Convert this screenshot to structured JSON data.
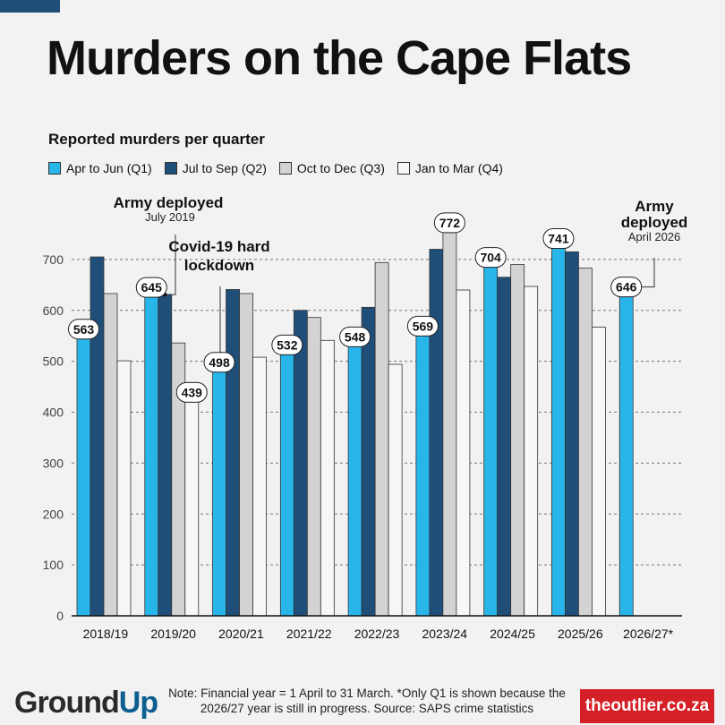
{
  "header": {
    "title": "Murders on the Cape Flats"
  },
  "chart_data": {
    "type": "bar",
    "title": "Murders on the Cape Flats",
    "subtitle": "Reported murders per quarter",
    "categories": [
      "2018/19",
      "2019/20",
      "2020/21",
      "2021/22",
      "2022/23",
      "2023/24",
      "2024/25",
      "2025/26",
      "2026/27*"
    ],
    "series": [
      {
        "name": "Apr to Jun (Q1)",
        "color": "#27b5ea",
        "values": [
          563,
          645,
          498,
          532,
          548,
          569,
          704,
          741,
          646
        ]
      },
      {
        "name": "Jul to Sep (Q2)",
        "color": "#1f4e79",
        "values": [
          705,
          631,
          641,
          600,
          606,
          720,
          665,
          715,
          null
        ]
      },
      {
        "name": "Oct to Dec (Q3)",
        "color": "#d3d3d3",
        "values": [
          633,
          536,
          633,
          586,
          694,
          772,
          690,
          683,
          null
        ]
      },
      {
        "name": "Jan to Mar (Q4)",
        "color": "#f7f7f7",
        "values": [
          501,
          439,
          508,
          541,
          494,
          640,
          647,
          567,
          null
        ]
      }
    ],
    "data_labels": [
      {
        "category": "2018/19",
        "series": "Apr to Jun (Q1)",
        "value": "563"
      },
      {
        "category": "2019/20",
        "series": "Apr to Jun (Q1)",
        "value": "645"
      },
      {
        "category": "2019/20",
        "series": "Jan to Mar (Q4)",
        "value": "439"
      },
      {
        "category": "2020/21",
        "series": "Apr to Jun (Q1)",
        "value": "498"
      },
      {
        "category": "2021/22",
        "series": "Apr to Jun (Q1)",
        "value": "532"
      },
      {
        "category": "2022/23",
        "series": "Apr to Jun (Q1)",
        "value": "548"
      },
      {
        "category": "2023/24",
        "series": "Apr to Jun (Q1)",
        "value": "569"
      },
      {
        "category": "2023/24",
        "series": "Oct to Dec (Q3)",
        "value": "772"
      },
      {
        "category": "2024/25",
        "series": "Apr to Jun (Q1)",
        "value": "704"
      },
      {
        "category": "2025/26",
        "series": "Apr to Jun (Q1)",
        "value": "741"
      },
      {
        "category": "2026/27*",
        "series": "Apr to Jun (Q1)",
        "value": "646"
      }
    ],
    "yticks": [
      0,
      100,
      200,
      300,
      400,
      500,
      600,
      700
    ],
    "ylim": [
      0,
      800
    ],
    "grid": true,
    "annotations": [
      {
        "title": "Army deployed",
        "detail": "July 2019",
        "category": "2019/20",
        "series": "Jul to Sep (Q2)",
        "value": 631
      },
      {
        "title": "Covid-19 hard lockdown",
        "detail": "",
        "category": "2020/21",
        "series": "Apr to Jun (Q1)",
        "value": 498
      },
      {
        "title": "Army deployed",
        "detail": "April 2026",
        "category": "2026/27*",
        "series": "Apr to Jun (Q1)",
        "value": 646
      }
    ]
  },
  "footer": {
    "logo_text": "GroundUp",
    "note": "Note: Financial year = 1 April to 31 March. *Only Q1 is shown because the 2026/27 year is still in progress. Source: SAPS crime statistics",
    "brand": "theoutlier.co.za"
  }
}
